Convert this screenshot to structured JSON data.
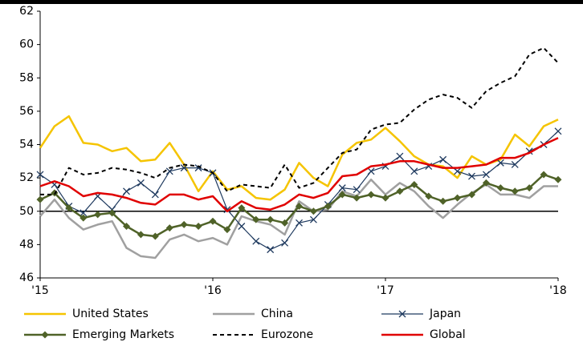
{
  "chart_data": {
    "type": "line",
    "x": [
      0,
      1,
      2,
      3,
      4,
      5,
      6,
      7,
      8,
      9,
      10,
      11,
      12,
      13,
      14,
      15,
      16,
      17,
      18,
      19,
      20,
      21,
      22,
      23,
      24,
      25,
      26,
      27,
      28,
      29,
      30,
      31,
      32,
      33,
      34,
      35,
      36
    ],
    "xlim": [
      0,
      36
    ],
    "xticks": [
      {
        "value": 0,
        "label": "'15"
      },
      {
        "value": 12,
        "label": "'16"
      },
      {
        "value": 24,
        "label": "'17"
      },
      {
        "value": 36,
        "label": "'18"
      }
    ],
    "ylim": [
      46,
      62
    ],
    "yticks": [
      46,
      48,
      50,
      52,
      54,
      56,
      58,
      60,
      62
    ],
    "reference_line": 50,
    "series": [
      {
        "name": "United States",
        "color": "#f5c400",
        "values": [
          53.8,
          55.1,
          55.7,
          54.1,
          54.0,
          53.6,
          53.8,
          53.0,
          53.1,
          54.1,
          52.8,
          51.2,
          52.4,
          51.3,
          51.5,
          50.8,
          50.7,
          51.3,
          52.9,
          52.0,
          51.5,
          53.4,
          54.1,
          54.3,
          55.0,
          54.2,
          53.3,
          52.8,
          52.7,
          52.0,
          53.3,
          52.8,
          53.1,
          54.6,
          53.9,
          55.1,
          55.5
        ]
      },
      {
        "name": "China",
        "color": "#a0a0a0",
        "values": [
          49.7,
          50.7,
          49.6,
          48.9,
          49.2,
          49.4,
          47.8,
          47.3,
          47.2,
          48.3,
          48.6,
          48.2,
          48.4,
          48.0,
          49.7,
          49.4,
          49.2,
          48.6,
          50.6,
          50.0,
          50.1,
          51.2,
          50.9,
          51.9,
          51.0,
          51.7,
          51.2,
          50.3,
          49.6,
          50.4,
          51.1,
          51.6,
          51.0,
          51.0,
          50.8,
          51.5,
          51.5
        ]
      },
      {
        "name": "Japan",
        "color": "#1f3a5f",
        "marker": "x",
        "values": [
          52.2,
          51.6,
          50.3,
          49.9,
          50.9,
          50.1,
          51.2,
          51.7,
          51.0,
          52.4,
          52.6,
          52.6,
          52.3,
          50.1,
          49.1,
          48.2,
          47.7,
          48.1,
          49.3,
          49.5,
          50.4,
          51.4,
          51.3,
          52.4,
          52.7,
          53.3,
          52.4,
          52.7,
          53.1,
          52.4,
          52.1,
          52.2,
          52.9,
          52.8,
          53.6,
          54.0,
          54.8
        ]
      },
      {
        "name": "Emerging Markets",
        "color": "#4f6228",
        "marker": "diamond",
        "values": [
          50.7,
          51.1,
          50.2,
          49.6,
          49.8,
          49.9,
          49.1,
          48.6,
          48.5,
          49.0,
          49.2,
          49.1,
          49.4,
          48.9,
          50.2,
          49.5,
          49.5,
          49.3,
          50.3,
          50.0,
          50.3,
          51.0,
          50.8,
          51.0,
          50.8,
          51.2,
          51.6,
          50.9,
          50.6,
          50.8,
          51.0,
          51.7,
          51.4,
          51.2,
          51.4,
          52.2,
          51.9
        ]
      },
      {
        "name": "Eurozone",
        "color": "#000000",
        "dash": true,
        "values": [
          51.0,
          51.0,
          52.6,
          52.2,
          52.3,
          52.6,
          52.5,
          52.3,
          52.0,
          52.6,
          52.8,
          52.7,
          52.3,
          51.2,
          51.6,
          51.5,
          51.4,
          52.8,
          51.4,
          51.7,
          52.6,
          53.5,
          53.7,
          54.9,
          55.2,
          55.3,
          56.1,
          56.7,
          57.0,
          56.8,
          56.2,
          57.2,
          57.7,
          58.1,
          59.4,
          59.8,
          58.9
        ]
      },
      {
        "name": "Global",
        "color": "#e00000",
        "values": [
          51.5,
          51.8,
          51.5,
          50.9,
          51.1,
          51.0,
          50.8,
          50.5,
          50.4,
          51.0,
          51.0,
          50.7,
          50.9,
          50.0,
          50.6,
          50.2,
          50.1,
          50.4,
          51.0,
          50.8,
          51.1,
          52.1,
          52.2,
          52.7,
          52.8,
          53.0,
          53.0,
          52.8,
          52.6,
          52.6,
          52.7,
          52.8,
          53.2,
          53.2,
          53.5,
          54.0,
          54.4
        ]
      }
    ]
  }
}
